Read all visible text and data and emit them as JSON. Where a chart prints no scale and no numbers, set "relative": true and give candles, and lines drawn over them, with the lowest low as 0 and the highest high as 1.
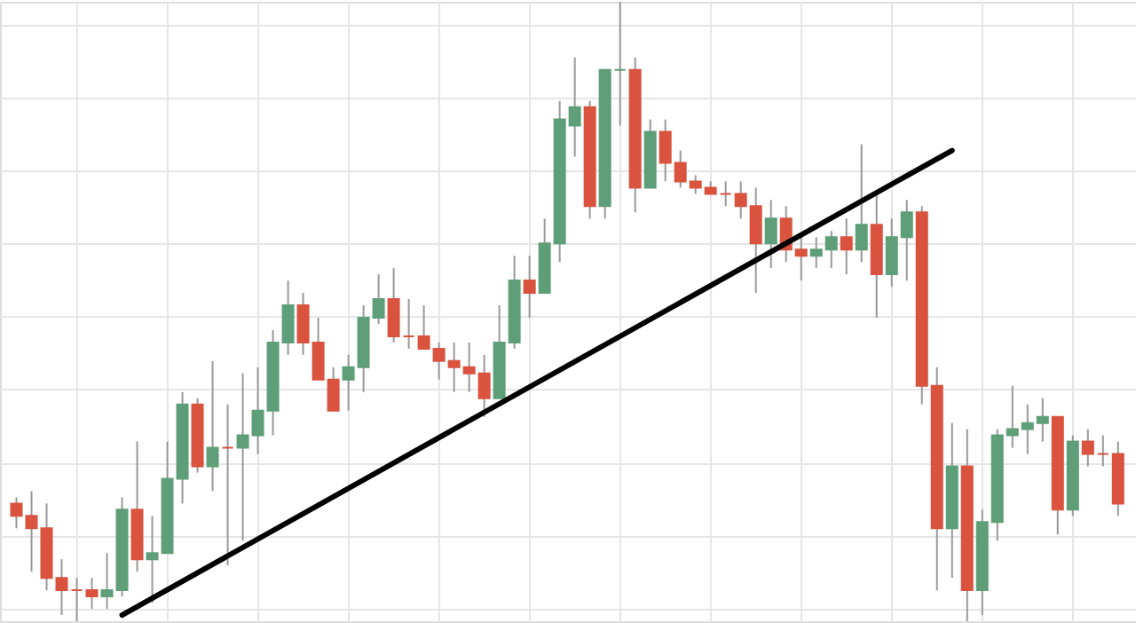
{
  "chart_data": {
    "type": "candlestick",
    "relative": true,
    "grid": true,
    "tick_labels": false,
    "categories": [
      null,
      null,
      null,
      null,
      null,
      null,
      null,
      null,
      null,
      null,
      null,
      null,
      null,
      null,
      null,
      null,
      null,
      null,
      null,
      null,
      null,
      null,
      null,
      null,
      null,
      null,
      null,
      null,
      null,
      null,
      null,
      null,
      null,
      null,
      null,
      null,
      null,
      null,
      null,
      null,
      null,
      null,
      null,
      null,
      null,
      null,
      null,
      null,
      null,
      null,
      null,
      null,
      null,
      null,
      null,
      null,
      null,
      null,
      null,
      null,
      null,
      null,
      null,
      null,
      null,
      null,
      null,
      null,
      null,
      null,
      null,
      null,
      null,
      null
    ],
    "ohlc": [
      [
        0.19,
        0.2,
        0.15,
        0.17
      ],
      [
        0.17,
        0.21,
        0.08,
        0.15
      ],
      [
        0.15,
        0.19,
        0.05,
        0.07
      ],
      [
        0.07,
        0.1,
        0.01,
        0.05
      ],
      [
        0.05,
        0.07,
        0.0,
        0.05
      ],
      [
        0.05,
        0.07,
        0.02,
        0.04
      ],
      [
        0.04,
        0.11,
        0.02,
        0.05
      ],
      [
        0.05,
        0.2,
        0.04,
        0.18
      ],
      [
        0.18,
        0.29,
        0.08,
        0.1
      ],
      [
        0.1,
        0.17,
        0.03,
        0.11
      ],
      [
        0.11,
        0.29,
        0.11,
        0.23
      ],
      [
        0.23,
        0.37,
        0.19,
        0.35
      ],
      [
        0.35,
        0.36,
        0.24,
        0.25
      ],
      [
        0.25,
        0.42,
        0.21,
        0.28
      ],
      [
        0.28,
        0.35,
        0.09,
        0.28
      ],
      [
        0.28,
        0.4,
        0.13,
        0.3
      ],
      [
        0.3,
        0.41,
        0.27,
        0.34
      ],
      [
        0.34,
        0.47,
        0.3,
        0.45
      ],
      [
        0.45,
        0.55,
        0.43,
        0.51
      ],
      [
        0.51,
        0.53,
        0.43,
        0.45
      ],
      [
        0.45,
        0.49,
        0.39,
        0.39
      ],
      [
        0.39,
        0.41,
        0.34,
        0.34
      ],
      [
        0.39,
        0.43,
        0.34,
        0.41
      ],
      [
        0.41,
        0.51,
        0.37,
        0.49
      ],
      [
        0.49,
        0.56,
        0.48,
        0.52
      ],
      [
        0.52,
        0.57,
        0.45,
        0.46
      ],
      [
        0.46,
        0.52,
        0.44,
        0.46
      ],
      [
        0.46,
        0.51,
        0.44,
        0.44
      ],
      [
        0.44,
        0.45,
        0.39,
        0.42
      ],
      [
        0.42,
        0.45,
        0.37,
        0.41
      ],
      [
        0.41,
        0.45,
        0.37,
        0.4
      ],
      [
        0.4,
        0.43,
        0.33,
        0.36
      ],
      [
        0.36,
        0.51,
        0.36,
        0.45
      ],
      [
        0.45,
        0.59,
        0.44,
        0.55
      ],
      [
        0.55,
        0.59,
        0.49,
        0.53
      ],
      [
        0.53,
        0.65,
        0.53,
        0.61
      ],
      [
        0.61,
        0.84,
        0.58,
        0.81
      ],
      [
        0.8,
        0.91,
        0.75,
        0.83
      ],
      [
        0.83,
        0.84,
        0.65,
        0.67
      ],
      [
        0.67,
        0.89,
        0.65,
        0.89
      ],
      [
        0.89,
        1.0,
        0.8,
        0.89
      ],
      [
        0.89,
        0.91,
        0.66,
        0.7
      ],
      [
        0.7,
        0.81,
        0.7,
        0.79
      ],
      [
        0.79,
        0.81,
        0.71,
        0.74
      ],
      [
        0.74,
        0.76,
        0.7,
        0.71
      ],
      [
        0.71,
        0.72,
        0.69,
        0.7
      ],
      [
        0.7,
        0.71,
        0.69,
        0.69
      ],
      [
        0.69,
        0.71,
        0.67,
        0.69
      ],
      [
        0.69,
        0.71,
        0.65,
        0.67
      ],
      [
        0.67,
        0.7,
        0.53,
        0.61
      ],
      [
        0.61,
        0.68,
        0.57,
        0.65
      ],
      [
        0.65,
        0.67,
        0.58,
        0.6
      ],
      [
        0.6,
        0.62,
        0.55,
        0.59
      ],
      [
        0.59,
        0.62,
        0.57,
        0.6
      ],
      [
        0.6,
        0.63,
        0.57,
        0.62
      ],
      [
        0.62,
        0.65,
        0.56,
        0.6
      ],
      [
        0.6,
        0.77,
        0.58,
        0.64
      ],
      [
        0.64,
        0.69,
        0.49,
        0.56
      ],
      [
        0.56,
        0.65,
        0.54,
        0.62
      ],
      [
        0.62,
        0.68,
        0.55,
        0.66
      ],
      [
        0.66,
        0.67,
        0.35,
        0.38
      ],
      [
        0.38,
        0.41,
        0.05,
        0.15
      ],
      [
        0.15,
        0.32,
        0.07,
        0.25
      ],
      [
        0.25,
        0.31,
        0.0,
        0.05
      ],
      [
        0.05,
        0.18,
        0.01,
        0.16
      ],
      [
        0.16,
        0.31,
        0.13,
        0.3
      ],
      [
        0.3,
        0.38,
        0.28,
        0.31
      ],
      [
        0.31,
        0.35,
        0.27,
        0.32
      ],
      [
        0.32,
        0.36,
        0.29,
        0.33
      ],
      [
        0.33,
        0.33,
        0.14,
        0.18
      ],
      [
        0.18,
        0.3,
        0.17,
        0.29
      ],
      [
        0.29,
        0.31,
        0.25,
        0.27
      ],
      [
        0.27,
        0.3,
        0.25,
        0.27
      ],
      [
        0.27,
        0.29,
        0.17,
        0.19
      ]
    ],
    "colors": [
      "#d9533f",
      "#d9533f",
      "#d9533f",
      "#d9533f",
      "#d9533f",
      "#d9533f",
      "#5e9e78",
      "#5e9e78",
      "#d9533f",
      "#5e9e78",
      "#5e9e78",
      "#5e9e78",
      "#d9533f",
      "#5e9e78",
      "#d9533f",
      "#5e9e78",
      "#5e9e78",
      "#5e9e78",
      "#5e9e78",
      "#d9533f",
      "#d9533f",
      "#d9533f",
      "#5e9e78",
      "#5e9e78",
      "#5e9e78",
      "#d9533f",
      "#d9533f",
      "#d9533f",
      "#d9533f",
      "#d9533f",
      "#d9533f",
      "#d9533f",
      "#5e9e78",
      "#5e9e78",
      "#d9533f",
      "#5e9e78",
      "#5e9e78",
      "#5e9e78",
      "#d9533f",
      "#5e9e78",
      "#5e9e78",
      "#d9533f",
      "#5e9e78",
      "#d9533f",
      "#d9533f",
      "#d9533f",
      "#d9533f",
      "#d9533f",
      "#d9533f",
      "#d9533f",
      "#5e9e78",
      "#d9533f",
      "#d9533f",
      "#5e9e78",
      "#5e9e78",
      "#d9533f",
      "#5e9e78",
      "#d9533f",
      "#5e9e78",
      "#5e9e78",
      "#d9533f",
      "#d9533f",
      "#5e9e78",
      "#d9533f",
      "#5e9e78",
      "#5e9e78",
      "#5e9e78",
      "#5e9e78",
      "#5e9e78",
      "#d9533f",
      "#5e9e78",
      "#d9533f",
      "#d9533f",
      "#d9533f"
    ],
    "series": [
      {
        "type": "line",
        "values": [
          null,
          null,
          null,
          null,
          null,
          null,
          null,
          0.01,
          null,
          null,
          null,
          null,
          null,
          null,
          null,
          null,
          null,
          null,
          null,
          null,
          null,
          null,
          null,
          null,
          null,
          null,
          null,
          null,
          null,
          null,
          null,
          null,
          null,
          null,
          null,
          null,
          null,
          null,
          null,
          null,
          null,
          null,
          null,
          null,
          null,
          null,
          null,
          null,
          null,
          null,
          null,
          null,
          null,
          null,
          null,
          null,
          null,
          null,
          null,
          null,
          null,
          null,
          0.76,
          null,
          null,
          null,
          null,
          null,
          null,
          null,
          null,
          null,
          null,
          null
        ],
        "color": "#000000"
      }
    ]
  }
}
